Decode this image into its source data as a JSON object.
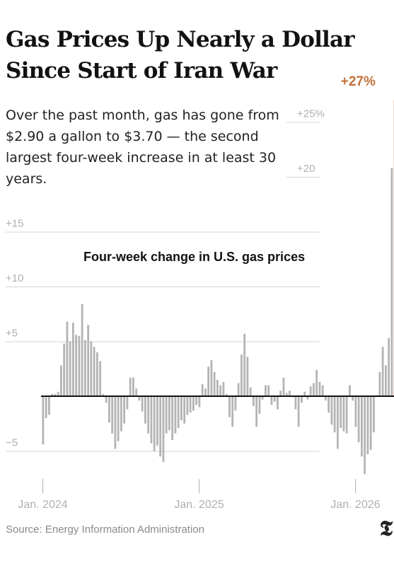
{
  "header": {
    "title": "Gas Prices Up Nearly a Dollar Since Start of Iran War",
    "subtitle": "Over the past month, gas has gone from $2.90 a gallon to $3.70 — the second largest four-week increase in at least 30 years."
  },
  "footer": {
    "source": "Source: Energy Information Administration",
    "logo_glyph": "𝕿"
  },
  "colors": {
    "bar": "#b4b4b4",
    "highlight": "#c0703a",
    "axis": "#111111",
    "grid": "#d4d4d4",
    "tick": "#b0b0b0"
  },
  "chart_data": {
    "type": "bar",
    "title": "Four-week change in U.S. gas prices",
    "xlabel": "",
    "ylabel": "",
    "ylim": [
      -7.5,
      27
    ],
    "y_ticks": [
      {
        "value": 25,
        "label": "+25%"
      },
      {
        "value": 20,
        "label": "+20"
      },
      {
        "value": 15,
        "label": "+15"
      },
      {
        "value": 10,
        "label": "+10"
      },
      {
        "value": 5,
        "label": "+5"
      },
      {
        "value": -5,
        "label": "−5"
      }
    ],
    "x_ticks": [
      {
        "index": 0,
        "label": "Jan. 2024"
      },
      {
        "index": 52,
        "label": "Jan. 2025"
      },
      {
        "index": 104,
        "label": "Jan. 2026"
      }
    ],
    "annotation": {
      "index": 113,
      "label": "+27%"
    },
    "values": [
      -4.4,
      -2,
      -1.7,
      0.2,
      0.2,
      0.4,
      2.8,
      4.8,
      6.8,
      5,
      6.7,
      5.6,
      5.5,
      8.4,
      5.1,
      6.5,
      5,
      4.5,
      4,
      3.2,
      0.2,
      -0.6,
      -2.4,
      -3.4,
      -4.8,
      -4.1,
      -3.2,
      -2.5,
      -1.2,
      1.7,
      1.7,
      0.7,
      -0.4,
      -1.4,
      -2.5,
      -3.4,
      -4.3,
      -5,
      -4.5,
      -5.5,
      -6,
      -3.4,
      -3.1,
      -4,
      -3.4,
      -2.9,
      -2.2,
      -2.5,
      -1.7,
      -1.5,
      -1.3,
      -0.8,
      -1,
      1.1,
      0.7,
      2.7,
      3.3,
      2.2,
      1.5,
      1,
      1.3,
      0.2,
      -1.9,
      -2.8,
      -1.3,
      1.2,
      3.8,
      5.7,
      3.6,
      0.8,
      -0.9,
      -2.8,
      -1.6,
      -0.3,
      1,
      1,
      -0.8,
      -0.5,
      -1.2,
      0.5,
      1.7,
      0.3,
      0.5,
      -0.1,
      -1.2,
      -2.8,
      -0.6,
      0.4,
      -0.3,
      0.9,
      1.2,
      2.4,
      1.3,
      1,
      -0.4,
      -1.5,
      -2.6,
      -3.3,
      -4.8,
      -2.9,
      -3.2,
      -3.4,
      1,
      -0.4,
      -2.8,
      -4.2,
      -5.5,
      -7.1,
      -5.3,
      -4.9,
      -3.3,
      0.1,
      2.2,
      4.5,
      2.8,
      5.3,
      20.8,
      27
    ]
  }
}
